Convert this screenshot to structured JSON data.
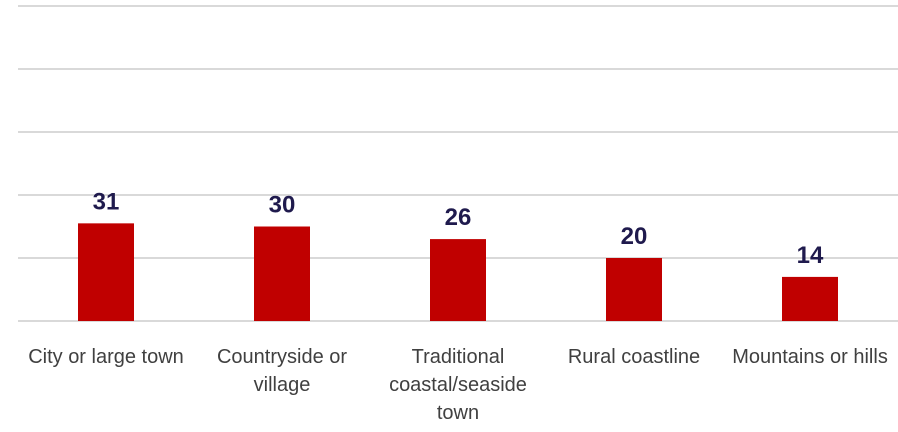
{
  "chart_data": {
    "type": "bar",
    "categories": [
      "City or large town",
      "Countryside or village",
      "Traditional coastal/seaside town",
      "Rural coastline",
      "Mountains or hills"
    ],
    "values": [
      31,
      30,
      26,
      20,
      14
    ],
    "color": "#c00000",
    "ylim": [
      0,
      100
    ],
    "yticks": [
      0,
      20,
      40,
      60,
      80,
      100
    ],
    "grid": true,
    "show_tick_labels": false
  }
}
